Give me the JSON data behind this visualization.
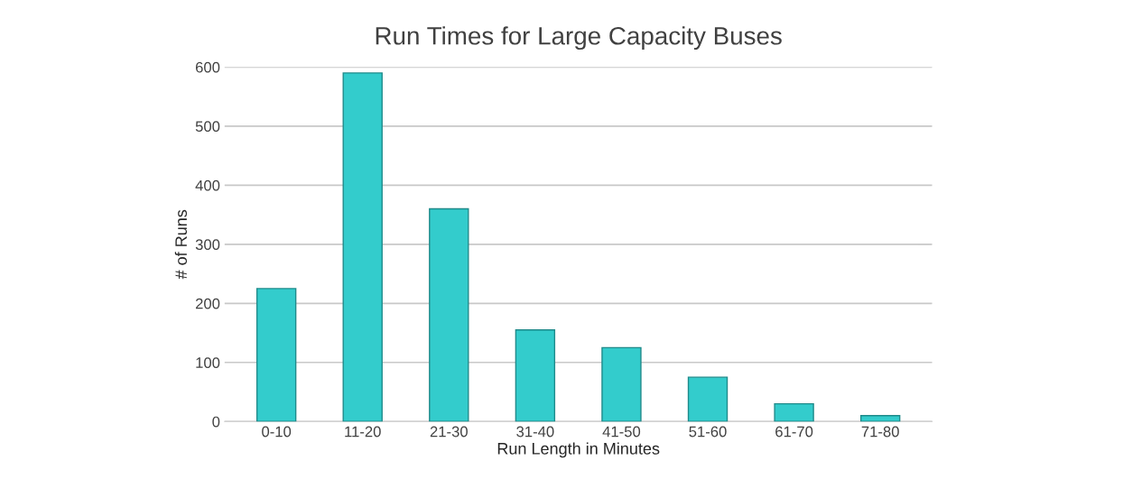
{
  "chart_data": {
    "type": "bar",
    "title": "Run Times for Large Capacity Buses",
    "xlabel": "Run Length in Minutes",
    "ylabel": "# of Runs",
    "categories": [
      "0-10",
      "11-20",
      "21-30",
      "31-40",
      "41-50",
      "51-60",
      "61-70",
      "71-80"
    ],
    "series": [
      {
        "color": "#33cccc",
        "values": [
          225,
          590,
          360,
          155,
          125,
          75,
          30,
          10
        ]
      }
    ],
    "ylim": [
      0,
      600
    ],
    "yticks": [
      0,
      100,
      200,
      300,
      400,
      500,
      600
    ],
    "grid": "y"
  }
}
